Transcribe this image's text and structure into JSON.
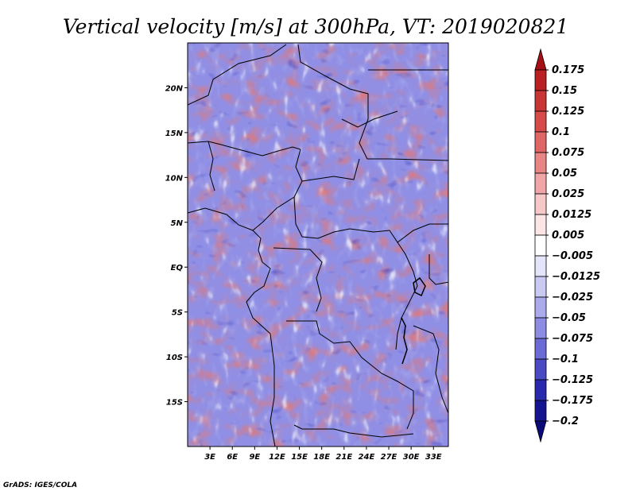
{
  "chart_data": {
    "type": "heatmap",
    "title": "Vertical velocity [m/s] at 300hPa, VT: 2019020821",
    "variable": "Vertical velocity",
    "units": "m/s",
    "level": "300hPa",
    "valid_time": "2019020821",
    "x_ticks": [
      "3E",
      "6E",
      "9E",
      "12E",
      "15E",
      "18E",
      "21E",
      "24E",
      "27E",
      "30E",
      "33E"
    ],
    "x_tick_values": [
      3,
      6,
      9,
      12,
      15,
      18,
      21,
      24,
      27,
      30,
      33
    ],
    "y_ticks": [
      "20N",
      "15N",
      "10N",
      "5N",
      "EQ",
      "5S",
      "10S",
      "15S"
    ],
    "y_tick_values": [
      20,
      15,
      10,
      5,
      0,
      -5,
      -10,
      -15
    ],
    "lon_range": [
      0,
      35
    ],
    "lat_range": [
      -20,
      25
    ],
    "colorbar_levels": [
      "0.175",
      "0.15",
      "0.125",
      "0.1",
      "0.075",
      "0.05",
      "0.025",
      "0.0125",
      "0.005",
      "−0.005",
      "−0.0125",
      "−0.025",
      "−0.05",
      "−0.075",
      "−0.1",
      "−0.125",
      "−0.175",
      "−0.2"
    ],
    "colorbar_colors": [
      "#a50f15",
      "#bb1f24",
      "#c93434",
      "#d64a4a",
      "#e06666",
      "#e88585",
      "#f0a6a6",
      "#f7c8c8",
      "#fce5e5",
      "#ffffff",
      "#e4e4fa",
      "#c9c9f3",
      "#aaaaec",
      "#8c8ce3",
      "#6b6bd6",
      "#4a4ac4",
      "#2929ad",
      "#141491",
      "#0a0a78"
    ],
    "colorbar_position": "right"
  },
  "credit": "GrADS: IGES/COLA"
}
